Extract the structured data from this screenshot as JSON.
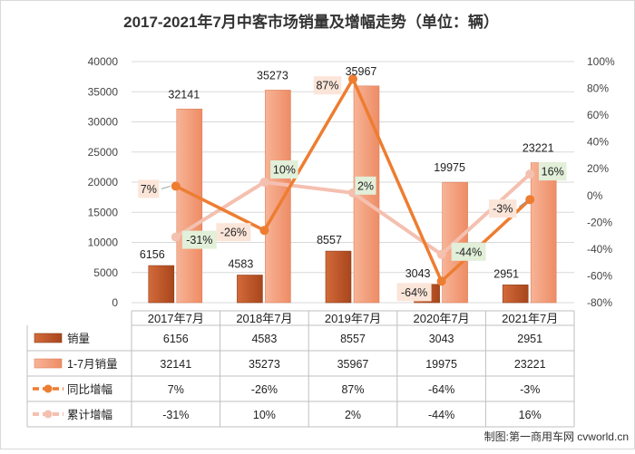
{
  "title": "2017-2021年7月中客市场销量及增幅走势（单位：辆）",
  "credit": "制图:第一商用车网 cvworld.cn",
  "chart_data": {
    "type": "bar+line",
    "categories": [
      "2017年7月",
      "2018年7月",
      "2019年7月",
      "2020年7月",
      "2021年7月"
    ],
    "y_left": {
      "min": 0,
      "max": 40000,
      "step": 5000,
      "ticks": [
        "0",
        "5000",
        "10000",
        "15000",
        "20000",
        "25000",
        "30000",
        "35000",
        "40000"
      ]
    },
    "y_right": {
      "min": -80,
      "max": 100,
      "step": 20,
      "ticks": [
        "-80%",
        "-60%",
        "-40%",
        "-20%",
        "0%",
        "20%",
        "40%",
        "60%",
        "80%",
        "100%"
      ]
    },
    "grid": true,
    "legend": "data-table",
    "series": [
      {
        "name": "销量",
        "type": "bar",
        "axis": "left",
        "color": "#c0572a",
        "values": [
          6156,
          4583,
          8557,
          3043,
          2951
        ],
        "labels": [
          "6156",
          "4583",
          "8557",
          "3043",
          "2951"
        ]
      },
      {
        "name": "1-7月销量",
        "type": "bar",
        "axis": "left",
        "color": "#f3a07e",
        "values": [
          32141,
          35273,
          35967,
          19975,
          23221
        ],
        "labels": [
          "32141",
          "35273",
          "35967",
          "19975",
          "23221"
        ]
      },
      {
        "name": "同比增幅",
        "type": "line",
        "axis": "right",
        "color": "#ed7d31",
        "values": [
          7,
          -26,
          87,
          -64,
          -3
        ],
        "labels": [
          "7%",
          "-26%",
          "87%",
          "-64%",
          "-3%"
        ]
      },
      {
        "name": "累计增幅",
        "type": "line",
        "axis": "right",
        "color": "#f4c0b0",
        "values": [
          -31,
          10,
          2,
          -44,
          16
        ],
        "labels": [
          "-31%",
          "10%",
          "2%",
          "-44%",
          "16%"
        ]
      }
    ]
  }
}
